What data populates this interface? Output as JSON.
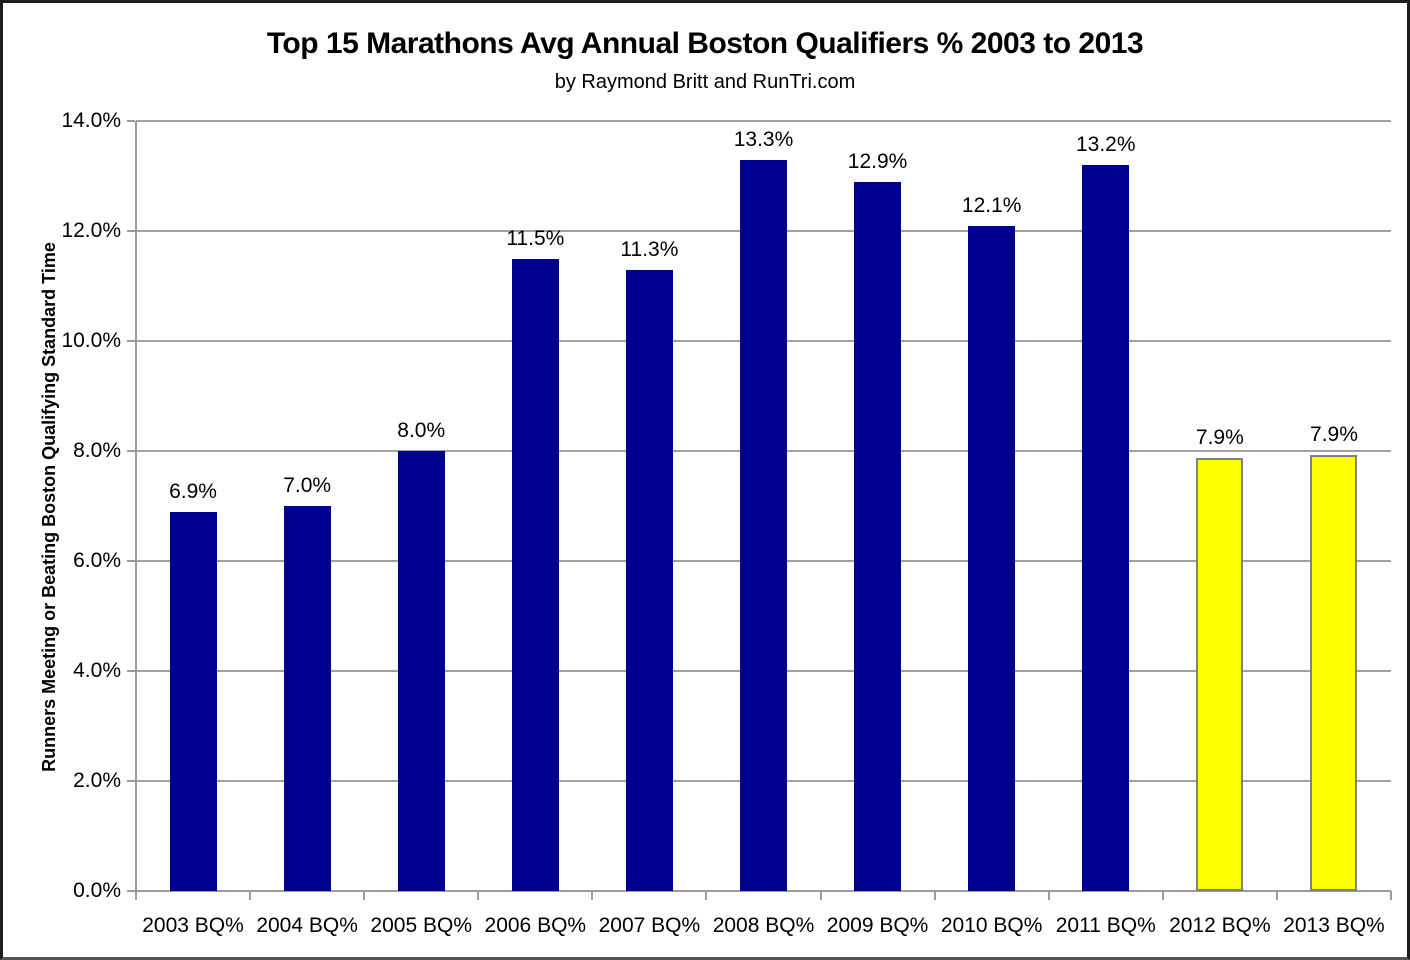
{
  "title": "Top 15 Marathons Avg Annual Boston Qualifiers % 2003 to 2013",
  "subtitle": "by Raymond Britt and RunTri.com",
  "colors": {
    "bar_primary": "#000090",
    "bar_highlight": "#FFFF00",
    "bar_highlight_border": "#808080",
    "gridline": "#A0A0A0",
    "axis": "#9B9B9B",
    "text": "#000000",
    "background": "#FFFFFF"
  },
  "chart_data": {
    "type": "bar",
    "title": "Top 15 Marathons Avg Annual Boston Qualifiers % 2003 to 2013",
    "subtitle": "by Raymond Britt and RunTri.com",
    "categories": [
      "2003 BQ%",
      "2004 BQ%",
      "2005 BQ%",
      "2006 BQ%",
      "2007 BQ%",
      "2008 BQ%",
      "2009 BQ%",
      "2010 BQ%",
      "2011 BQ%",
      "2012 BQ%",
      "2013 BQ%"
    ],
    "values": [
      6.9,
      7.0,
      8.0,
      11.5,
      11.3,
      13.3,
      12.9,
      12.1,
      13.2,
      7.87,
      7.93
    ],
    "value_labels": [
      "6.9%",
      "7.0%",
      "8.0%",
      "11.5%",
      "11.3%",
      "13.3%",
      "12.9%",
      "12.1%",
      "13.2%",
      "7.9%",
      "7.9%"
    ],
    "highlighted": [
      false,
      false,
      false,
      false,
      false,
      false,
      false,
      false,
      false,
      true,
      true
    ],
    "xlabel": "",
    "ylabel": "Runners Meeting or Beating Boston Qualifying Standard Time",
    "ylim": [
      0,
      14
    ],
    "ytick_step": 2,
    "ytick_labels": [
      "0.0%",
      "2.0%",
      "4.0%",
      "6.0%",
      "8.0%",
      "10.0%",
      "12.0%",
      "14.0%"
    ],
    "grid": true,
    "legend": false
  }
}
